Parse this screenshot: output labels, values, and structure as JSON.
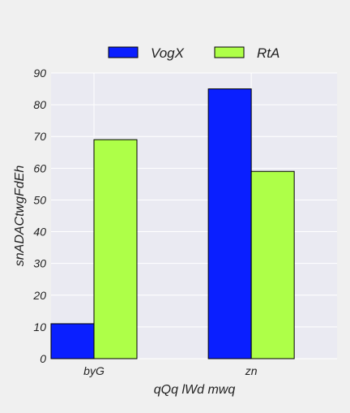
{
  "chart_data": {
    "type": "bar",
    "title": "",
    "categories": [
      "byG",
      "zn"
    ],
    "series": [
      {
        "name": "VogX",
        "color": "#0a1fff",
        "values": [
          11,
          85
        ]
      },
      {
        "name": "RtA",
        "color": "#aeff48",
        "values": [
          69,
          59
        ]
      }
    ],
    "xlabel": "qQq lWd mwq",
    "ylabel": "snADACtwgFdEh",
    "ylim": [
      0,
      90
    ],
    "yticks": [
      0,
      10,
      20,
      30,
      40,
      50,
      60,
      70,
      80,
      90
    ],
    "grid": true,
    "legend_position": "top-center",
    "plot_background": "#eaeaf2",
    "grid_color": "#ffffff"
  }
}
